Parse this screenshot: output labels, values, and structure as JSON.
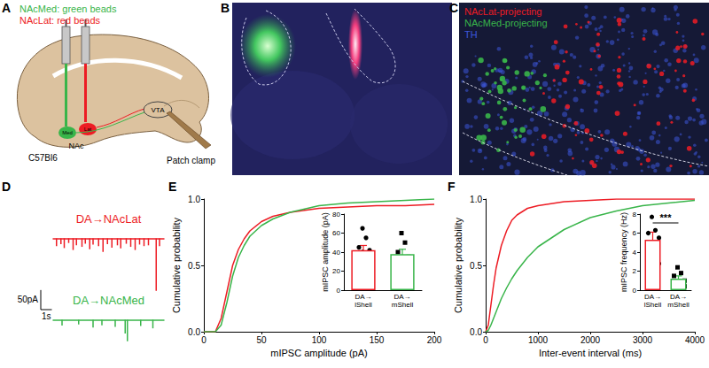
{
  "figure": {
    "panel_labels": [
      "A",
      "B",
      "C",
      "D",
      "E",
      "F"
    ],
    "schematic": {
      "injections": [
        {
          "text": "NAcMed: green beads",
          "color": "#39b54a"
        },
        {
          "text": "NAcLat: red beads",
          "color": "#ed1c24"
        }
      ],
      "site_labels": [
        "Med",
        "Lat"
      ],
      "region": "NAc",
      "target": "VTA",
      "method": "Patch clamp",
      "strain": "C57Bl6"
    },
    "histology_legend": [
      {
        "text": "NAcLat-projecting",
        "color": "#ed1c24"
      },
      {
        "text": "NAcMed-projecting",
        "color": "#39b54a"
      },
      {
        "text": "TH",
        "color": "#3c56d8"
      }
    ],
    "scale_bar": {
      "x": 1,
      "x_label": "1s",
      "y": 50,
      "y_label": "50pA"
    }
  },
  "chart_data": [
    {
      "type": "trace",
      "title": "DA→NAcLat",
      "color": "#ed1c24",
      "x": [
        0.3,
        0.7,
        1.0,
        1.4,
        1.8,
        2.1,
        2.6,
        2.9,
        3.3,
        3.6,
        4.1,
        4.5,
        4.9,
        5.3,
        5.8,
        6.1,
        6.6,
        7.0,
        7.4,
        7.8,
        8.2,
        8.6,
        9.3,
        9.6
      ],
      "values": [
        -20,
        -15,
        -25,
        -12,
        -30,
        -18,
        -22,
        -14,
        -28,
        -16,
        -20,
        -35,
        -15,
        -24,
        -18,
        -26,
        -14,
        -22,
        -30,
        -16,
        -20,
        -18,
        -135,
        -20
      ],
      "xlim": [
        0,
        10
      ],
      "ylim": [
        -140,
        10
      ],
      "tick_labels": false
    },
    {
      "type": "trace",
      "title": "DA→NAcMed",
      "color": "#39b54a",
      "x": [
        0.8,
        2.3,
        3.6,
        4.4,
        5.6,
        6.5,
        6.7,
        7.9,
        9.0
      ],
      "values": [
        -15,
        -12,
        -20,
        -14,
        -18,
        -35,
        -55,
        -16,
        -22
      ],
      "xlim": [
        0,
        10
      ],
      "ylim": [
        -60,
        10
      ],
      "tick_labels": false
    },
    {
      "type": "line",
      "x_label": "mIPSC amplitude (pA)",
      "y_label": "Cumulative probability",
      "xlim": [
        0,
        200
      ],
      "xticks": [
        0,
        50,
        100,
        150,
        200
      ],
      "ylim": [
        0,
        1
      ],
      "yticks": [
        {
          "value": 0,
          "label": "0.0"
        },
        {
          "value": 0.5,
          "label": "0.5"
        },
        {
          "value": 1,
          "label": "1.0"
        }
      ],
      "series": [
        {
          "color": "#ed1c24",
          "x": [
            0,
            10,
            15,
            20,
            25,
            30,
            35,
            40,
            50,
            60,
            75,
            100,
            125,
            150,
            175,
            200
          ],
          "values": [
            0,
            0,
            0.1,
            0.3,
            0.5,
            0.62,
            0.7,
            0.76,
            0.83,
            0.87,
            0.9,
            0.93,
            0.94,
            0.95,
            0.95,
            0.96
          ]
        },
        {
          "color": "#39b54a",
          "x": [
            0,
            10,
            15,
            20,
            25,
            30,
            35,
            40,
            50,
            60,
            75,
            100,
            125,
            150,
            175,
            200
          ],
          "values": [
            0,
            0,
            0.05,
            0.22,
            0.42,
            0.56,
            0.65,
            0.72,
            0.8,
            0.85,
            0.9,
            0.95,
            0.97,
            0.98,
            0.99,
            1.0
          ]
        }
      ]
    },
    {
      "type": "bar",
      "y_label": "mIPSC amplitude (pA)",
      "categories": [
        "DA→\nlShell",
        "DA→\nmShell"
      ],
      "values": [
        42,
        38
      ],
      "errors": [
        5,
        5
      ],
      "colors": [
        "#ed1c24",
        "#39b54a"
      ],
      "points": [
        {
          "marker": "circle",
          "values": [
            65,
            55,
            45,
            42,
            40,
            35,
            30,
            25
          ]
        },
        {
          "marker": "square",
          "values": [
            60,
            50,
            40,
            35,
            30,
            28,
            27,
            25
          ]
        }
      ],
      "ylim": [
        0,
        80
      ],
      "yticks": [
        0,
        20,
        40,
        60,
        80
      ]
    },
    {
      "type": "line",
      "x_label": "Inter-event interval (ms)",
      "y_label": "Cumulative probability",
      "xlim": [
        0,
        4000
      ],
      "xticks": [
        0,
        1000,
        2000,
        3000,
        4000
      ],
      "ylim": [
        0,
        1
      ],
      "yticks": [
        {
          "value": 0,
          "label": "0.0"
        },
        {
          "value": 0.5,
          "label": "0.5"
        },
        {
          "value": 1,
          "label": "1.0"
        }
      ],
      "series": [
        {
          "color": "#ed1c24",
          "x": [
            0,
            50,
            100,
            150,
            200,
            300,
            400,
            500,
            600,
            800,
            1000,
            1500,
            2000,
            2500,
            3000,
            4000
          ],
          "values": [
            0,
            0.05,
            0.2,
            0.35,
            0.48,
            0.65,
            0.76,
            0.84,
            0.88,
            0.93,
            0.95,
            0.98,
            0.99,
            1,
            1,
            1
          ]
        },
        {
          "color": "#39b54a",
          "x": [
            0,
            50,
            100,
            150,
            200,
            300,
            400,
            500,
            600,
            800,
            1000,
            1500,
            2000,
            2500,
            3000,
            4000
          ],
          "values": [
            0,
            0.01,
            0.05,
            0.1,
            0.15,
            0.25,
            0.33,
            0.4,
            0.46,
            0.56,
            0.64,
            0.77,
            0.86,
            0.91,
            0.95,
            0.99
          ]
        }
      ]
    },
    {
      "type": "bar",
      "y_label": "mIPSC frequency (Hz)",
      "categories": [
        "DA→\nlShell",
        "DA→\nmShell"
      ],
      "values": [
        5.3,
        1.2
      ],
      "errors": [
        0.8,
        0.3
      ],
      "colors": [
        "#ed1c24",
        "#39b54a"
      ],
      "points": [
        {
          "marker": "circle",
          "values": [
            7.7,
            6.3,
            6.0,
            5.5,
            5.0,
            4.2,
            3.8,
            2.8
          ]
        },
        {
          "marker": "square",
          "values": [
            2.4,
            1.8,
            1.5,
            1.0,
            0.8,
            0.6,
            0.5,
            0.4
          ]
        }
      ],
      "ylim": [
        0,
        8
      ],
      "yticks": [
        0,
        2,
        4,
        6,
        8
      ],
      "annotation": "***"
    }
  ]
}
